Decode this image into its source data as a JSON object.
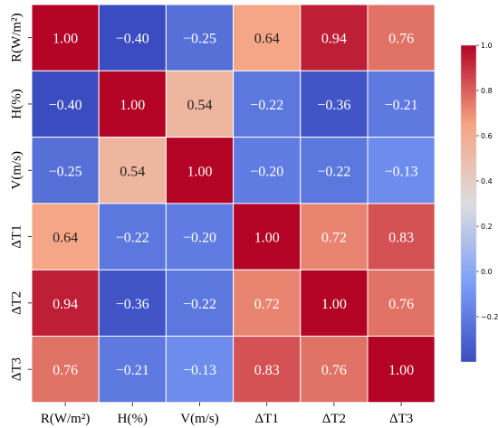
{
  "chart_data": {
    "type": "heatmap",
    "title": "",
    "xlabel": "",
    "ylabel": "",
    "row_labels": [
      "R(W/m²)",
      "H(%)",
      "V(m/s)",
      "ΔT1",
      "ΔT2",
      "ΔT3"
    ],
    "col_labels": [
      "R(W/m²)",
      "H(%)",
      "V(m/s)",
      "ΔT1",
      "ΔT2",
      "ΔT3"
    ],
    "values": [
      [
        1.0,
        -0.4,
        -0.25,
        0.64,
        0.94,
        0.76
      ],
      [
        -0.4,
        1.0,
        0.54,
        -0.22,
        -0.36,
        -0.21
      ],
      [
        -0.25,
        0.54,
        1.0,
        -0.2,
        -0.22,
        -0.13
      ],
      [
        0.64,
        -0.22,
        -0.2,
        1.0,
        0.72,
        0.83
      ],
      [
        0.94,
        -0.36,
        -0.22,
        0.72,
        1.0,
        0.76
      ],
      [
        0.76,
        -0.21,
        -0.13,
        0.83,
        0.76,
        1.0
      ]
    ],
    "value_format": "2-decimal, unicode minus",
    "colormap": "coolwarm",
    "vmin": -0.4,
    "vmax": 1.0,
    "colorbar": {
      "ticks": [
        1.0,
        0.8,
        0.6,
        0.4,
        0.2,
        0.0,
        -0.2
      ],
      "tick_labels": [
        "1.0",
        "0.8",
        "0.6",
        "0.4",
        "0.2",
        "0.0",
        "−0.2"
      ],
      "placement": "right"
    },
    "colors": {
      "cool_end": "#3b4cc0",
      "neutral": "#dddddd",
      "warm_end": "#b40426",
      "grid_line": "#ffffff"
    },
    "grid": true,
    "legend": "colorbar-right"
  }
}
